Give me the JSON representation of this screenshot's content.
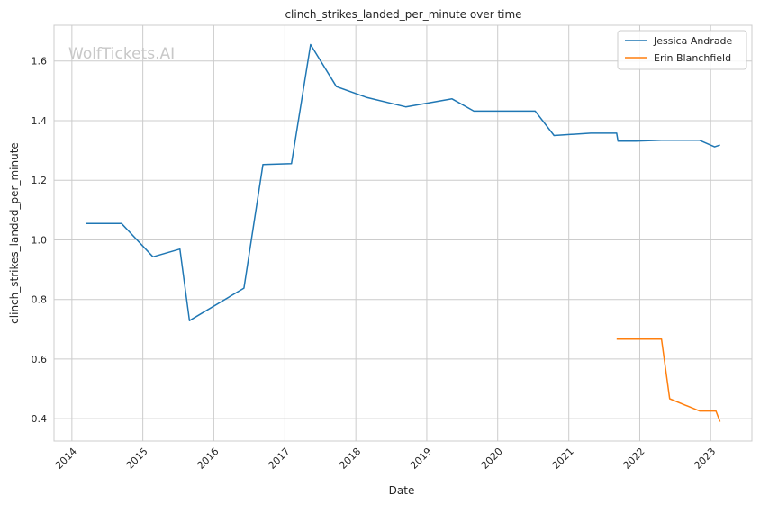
{
  "chart_data": {
    "type": "line",
    "title": "clinch_strikes_landed_per_minute over time",
    "xlabel": "Date",
    "ylabel": "clinch_strikes_landed_per_minute",
    "watermark": "WolfTickets.AI",
    "x_ticks": [
      "2014",
      "2015",
      "2016",
      "2017",
      "2018",
      "2019",
      "2020",
      "2021",
      "2022",
      "2023"
    ],
    "y_ticks": [
      "0.4",
      "0.6",
      "0.8",
      "1.0",
      "1.2",
      "1.4",
      "1.6"
    ],
    "xlim": [
      "2013-10-01",
      "2023-08-01"
    ],
    "ylim": [
      0.325,
      1.72
    ],
    "grid": true,
    "legend_position": "top-right",
    "series": [
      {
        "name": "Jessica Andrade",
        "color": "#1f77b4",
        "points": [
          [
            "2014-03-15",
            1.055
          ],
          [
            "2014-09-13",
            1.055
          ],
          [
            "2015-02-22",
            0.943
          ],
          [
            "2015-07-11",
            0.969
          ],
          [
            "2015-08-29",
            0.729
          ],
          [
            "2016-06-04",
            0.838
          ],
          [
            "2016-09-10",
            1.253
          ],
          [
            "2017-02-04",
            1.256
          ],
          [
            "2017-05-13",
            1.655
          ],
          [
            "2017-09-23",
            1.514
          ],
          [
            "2018-02-24",
            1.478
          ],
          [
            "2018-09-15",
            1.446
          ],
          [
            "2019-05-11",
            1.473
          ],
          [
            "2019-08-31",
            1.432
          ],
          [
            "2020-07-12",
            1.432
          ],
          [
            "2020-10-17",
            1.35
          ],
          [
            "2021-04-24",
            1.358
          ],
          [
            "2021-09-04",
            1.358
          ],
          [
            "2021-09-11",
            1.331
          ],
          [
            "2021-12-11",
            1.331
          ],
          [
            "2022-04-23",
            1.334
          ],
          [
            "2022-11-05",
            1.334
          ],
          [
            "2023-01-21",
            1.312
          ],
          [
            "2023-02-18",
            1.318
          ]
        ]
      },
      {
        "name": "Erin Blanchfield",
        "color": "#ff7f0e",
        "points": [
          [
            "2021-09-04",
            0.667
          ],
          [
            "2022-04-23",
            0.667
          ],
          [
            "2022-06-04",
            0.467
          ],
          [
            "2022-11-05",
            0.426
          ],
          [
            "2023-01-28",
            0.426
          ],
          [
            "2023-02-18",
            0.39
          ]
        ]
      }
    ]
  }
}
